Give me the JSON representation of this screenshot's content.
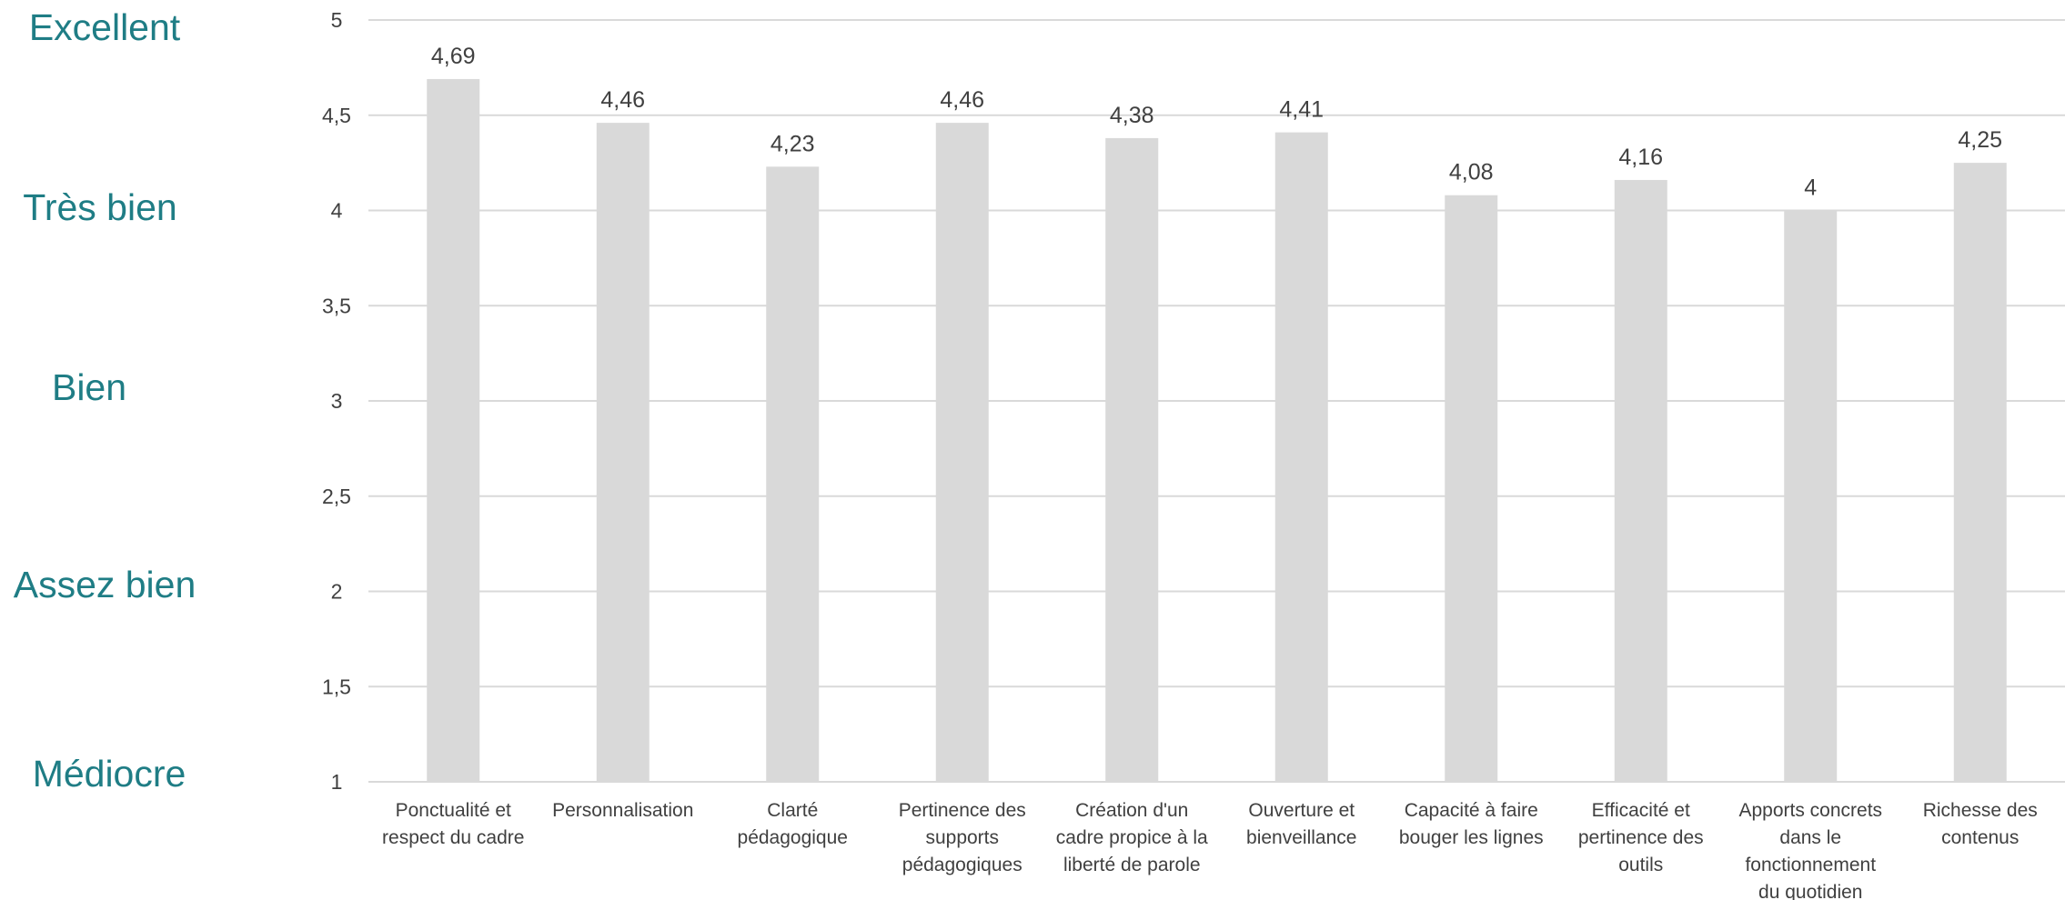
{
  "rating_scale": [
    "Excellent",
    "Très bien",
    "Bien",
    "Assez bien",
    "Médiocre"
  ],
  "chart_data": {
    "type": "bar",
    "title": "",
    "xlabel": "",
    "ylabel": "",
    "ylim": [
      1,
      5
    ],
    "y_ticks": [
      {
        "value": 5,
        "label": "5"
      },
      {
        "value": 4.5,
        "label": "4,5"
      },
      {
        "value": 4,
        "label": "4"
      },
      {
        "value": 3.5,
        "label": "3,5"
      },
      {
        "value": 3,
        "label": "3"
      },
      {
        "value": 2.5,
        "label": "2,5"
      },
      {
        "value": 2,
        "label": "2"
      },
      {
        "value": 1.5,
        "label": "1,5"
      },
      {
        "value": 1,
        "label": "1"
      }
    ],
    "grid": true,
    "legend": "none",
    "bar_color": "#d9d9d9",
    "categories": [
      [
        "Ponctualité et",
        "respect du cadre"
      ],
      [
        "Personnalisation"
      ],
      [
        "Clarté",
        "pédagogique"
      ],
      [
        "Pertinence des",
        "supports",
        "pédagogiques"
      ],
      [
        "Création d'un",
        "cadre propice à la",
        "liberté de parole"
      ],
      [
        "Ouverture et",
        "bienveillance"
      ],
      [
        "Capacité à faire",
        "bouger les lignes"
      ],
      [
        "Efficacité et",
        "pertinence des",
        "outils"
      ],
      [
        "Apports concrets",
        "dans le",
        "fonctionnement",
        "du quotidien"
      ],
      [
        "Richesse des",
        "contenus"
      ]
    ],
    "values": [
      4.69,
      4.46,
      4.23,
      4.46,
      4.38,
      4.41,
      4.08,
      4.16,
      4,
      4.25
    ],
    "value_labels": [
      "4,69",
      "4,46",
      "4,23",
      "4,46",
      "4,38",
      "4,41",
      "4,08",
      "4,16",
      "4",
      "4,25"
    ]
  },
  "colors": {
    "rating_text": "#1f7d85",
    "axis_text": "#404040",
    "gridline": "#d9d9d9"
  }
}
